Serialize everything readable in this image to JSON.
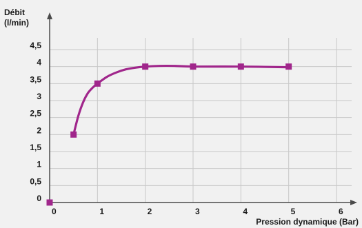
{
  "chart_data": {
    "type": "line",
    "ylabel_line1": "Débit",
    "ylabel_line2": "(l/min)",
    "xlabel": "Pression dynamique (Bar)",
    "x_ticks": [
      0,
      1,
      2,
      3,
      4,
      5,
      6
    ],
    "x_tick_labels": [
      "0",
      "1",
      "2",
      "3",
      "4",
      "5",
      "6"
    ],
    "y_ticks": [
      0,
      0.5,
      1,
      1.5,
      2,
      2.5,
      3,
      3.5,
      4,
      4.5
    ],
    "y_tick_labels": [
      "0",
      "0,5",
      "1",
      "1,5",
      "2",
      "2,5",
      "3",
      "3,5",
      "4",
      "4,5"
    ],
    "xlim": [
      0,
      6
    ],
    "ylim": [
      0,
      4.5
    ],
    "grid": true,
    "series": [
      {
        "x": [
          0,
          0.5,
          1,
          2,
          3,
          4,
          5
        ],
        "y": [
          0,
          2,
          3.5,
          4,
          4,
          4,
          4
        ]
      }
    ],
    "curve_points": [
      [
        0.5,
        2
      ],
      [
        0.6,
        2.55
      ],
      [
        0.7,
        2.95
      ],
      [
        0.8,
        3.22
      ],
      [
        0.9,
        3.38
      ],
      [
        1,
        3.5
      ],
      [
        1.2,
        3.7
      ],
      [
        1.4,
        3.83
      ],
      [
        1.6,
        3.92
      ],
      [
        1.8,
        3.97
      ],
      [
        2,
        4.0
      ],
      [
        2.3,
        4.02
      ],
      [
        2.6,
        4.02
      ],
      [
        3,
        4.0
      ],
      [
        4,
        4.0
      ],
      [
        5,
        3.98
      ]
    ],
    "colors": {
      "line": "#a0268b",
      "marker": "#a0268b",
      "grid": "#c8c8c8",
      "axis": "#4a4a4a",
      "background": "#f1f1f1"
    }
  }
}
